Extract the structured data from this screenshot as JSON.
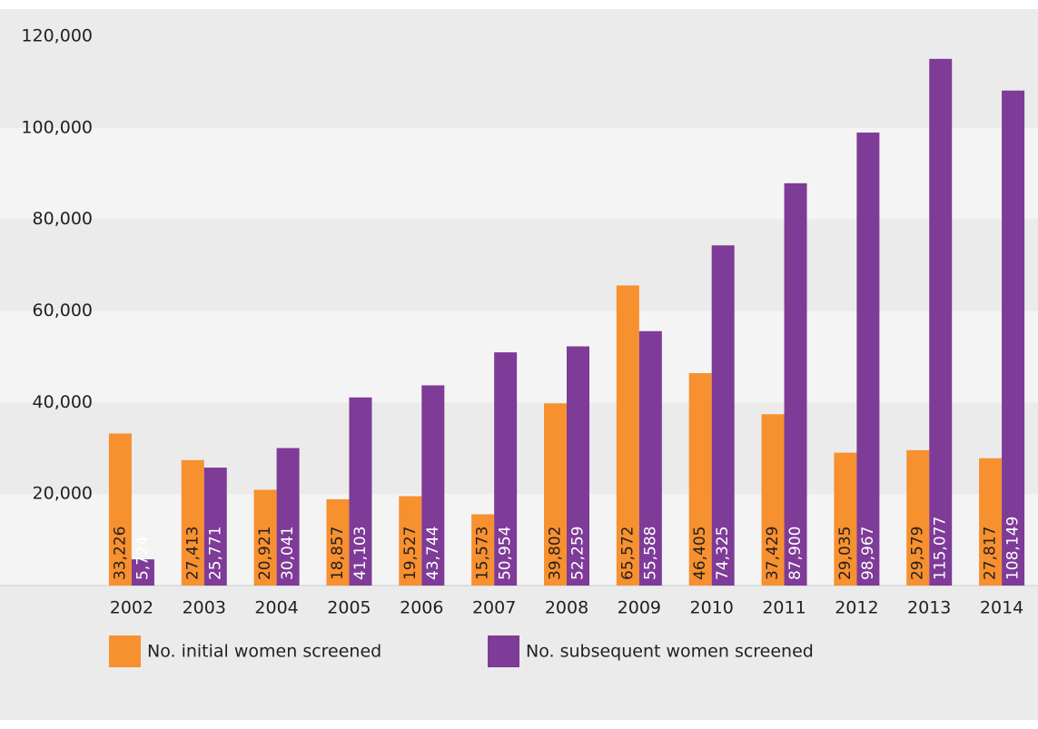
{
  "chart_data": {
    "type": "bar",
    "categories": [
      "2002",
      "2003",
      "2004",
      "2005",
      "2006",
      "2007",
      "2008",
      "2009",
      "2010",
      "2011",
      "2012",
      "2013",
      "2014"
    ],
    "series": [
      {
        "name": "No. initial women screened",
        "color": "#f7902f",
        "values": [
          33226,
          27413,
          20921,
          18857,
          19527,
          15573,
          39802,
          65572,
          46405,
          37429,
          29035,
          29579,
          27817
        ],
        "value_labels": [
          "33,226",
          "27,413",
          "20,921",
          "18,857",
          "19,527",
          "15,573",
          "39,802",
          "65,572",
          "46,405",
          "37,429",
          "29,035",
          "29,579",
          "27,817"
        ]
      },
      {
        "name": "No. subsequent women screened",
        "color": "#7e3b97",
        "values": [
          5724,
          25771,
          30041,
          41103,
          43744,
          50954,
          52259,
          55588,
          74325,
          87900,
          98967,
          115077,
          108149
        ],
        "value_labels": [
          "5,724",
          "25,771",
          "30,041",
          "41,103",
          "43,744",
          "50,954",
          "52,259",
          "55,588",
          "74,325",
          "87,900",
          "98,967",
          "115,077",
          "108,149"
        ]
      }
    ],
    "ylim": [
      0,
      120000
    ],
    "yticks": [
      {
        "value": 20000,
        "label": "20,000"
      },
      {
        "value": 40000,
        "label": "40,000"
      },
      {
        "value": 60000,
        "label": "60,000"
      },
      {
        "value": 80000,
        "label": "80,000"
      },
      {
        "value": 100000,
        "label": "100,000"
      },
      {
        "value": 120000,
        "label": "120,000"
      }
    ],
    "legend": "bottom"
  }
}
